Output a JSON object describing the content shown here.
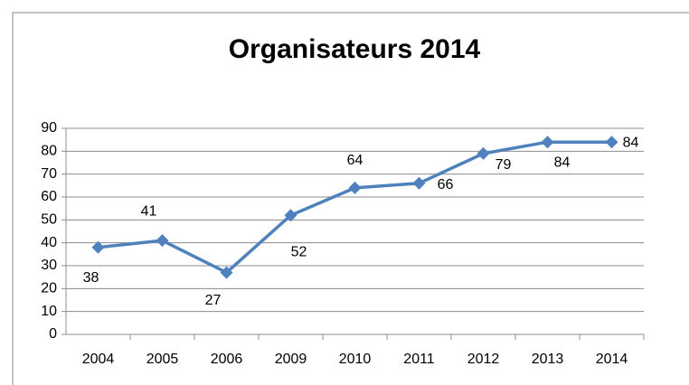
{
  "chart_data": {
    "type": "line",
    "title": "Organisateurs 2014",
    "categories": [
      "2004",
      "2005",
      "2006",
      "2009",
      "2010",
      "2011",
      "2012",
      "2013",
      "2014"
    ],
    "series": [
      {
        "name": "Organisateurs",
        "color": "#4f81bd",
        "values": [
          38,
          41,
          27,
          52,
          64,
          66,
          79,
          84,
          84
        ]
      }
    ],
    "ylim": [
      0,
      90
    ],
    "yticks": [
      0,
      10,
      20,
      30,
      40,
      50,
      60,
      70,
      80,
      90
    ],
    "grid": true
  }
}
